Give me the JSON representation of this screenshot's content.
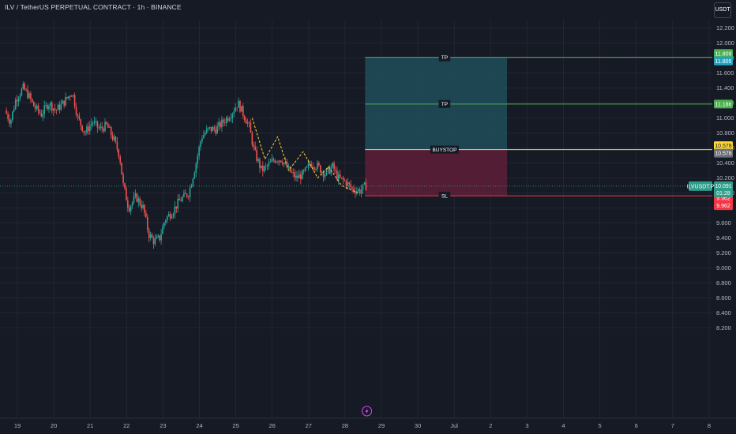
{
  "header": {
    "symbol_title": "ILV / TetherUS PERPETUAL CONTRACT · 1h · BINANCE",
    "currency": "USDT"
  },
  "colors": {
    "background": "#161a25",
    "up": "#26a69a",
    "down": "#ef5350",
    "profit_zone": "#1f4e5a",
    "loss_zone": "#5e1f3a",
    "tp_line": "#4caf50",
    "buystop_line": "#fdd835",
    "sl_line": "#f23645",
    "pattern_line": "#fdd835"
  },
  "chart_data": {
    "type": "candlestick",
    "ylim": [
      8.1,
      12.3
    ],
    "y_ticks": [
      "12.200",
      "12.000",
      "11.800",
      "11.600",
      "11.400",
      "11.200",
      "11.000",
      "10.800",
      "10.600",
      "10.400",
      "10.200",
      "10.000",
      "9.800",
      "9.600",
      "9.400",
      "9.200",
      "9.000",
      "8.800",
      "8.600",
      "8.400",
      "8.200"
    ],
    "x_ticks": [
      {
        "label": "19",
        "day": 19
      },
      {
        "label": "20",
        "day": 20
      },
      {
        "label": "21",
        "day": 21
      },
      {
        "label": "22",
        "day": 22
      },
      {
        "label": "23",
        "day": 23
      },
      {
        "label": "24",
        "day": 24
      },
      {
        "label": "25",
        "day": 25
      },
      {
        "label": "26",
        "day": 26
      },
      {
        "label": "27",
        "day": 27
      },
      {
        "label": "28",
        "day": 28
      },
      {
        "label": "29",
        "day": 29
      },
      {
        "label": "30",
        "day": 30
      },
      {
        "label": "Jul",
        "day": 31
      },
      {
        "label": "2",
        "day": 32
      },
      {
        "label": "3",
        "day": 33
      },
      {
        "label": "4",
        "day": 34
      },
      {
        "label": "5",
        "day": 35
      },
      {
        "label": "6",
        "day": 36
      },
      {
        "label": "7",
        "day": 37
      },
      {
        "label": "8",
        "day": 38
      }
    ],
    "day_range": [
      18.7,
      39.0
    ],
    "price_path": [
      [
        18.7,
        11.1
      ],
      [
        18.85,
        10.95
      ],
      [
        19.0,
        11.25
      ],
      [
        19.2,
        11.4
      ],
      [
        19.35,
        11.3
      ],
      [
        19.5,
        11.15
      ],
      [
        19.7,
        11.05
      ],
      [
        19.9,
        11.2
      ],
      [
        20.1,
        11.1
      ],
      [
        20.3,
        11.2
      ],
      [
        20.55,
        11.35
      ],
      [
        20.7,
        11.0
      ],
      [
        20.9,
        10.8
      ],
      [
        21.1,
        10.95
      ],
      [
        21.3,
        10.85
      ],
      [
        21.5,
        10.9
      ],
      [
        21.7,
        10.7
      ],
      [
        21.85,
        10.5
      ],
      [
        21.95,
        10.1
      ],
      [
        22.1,
        9.8
      ],
      [
        22.3,
        9.95
      ],
      [
        22.5,
        9.8
      ],
      [
        22.65,
        9.45
      ],
      [
        22.8,
        9.35
      ],
      [
        22.95,
        9.4
      ],
      [
        23.1,
        9.65
      ],
      [
        23.3,
        9.75
      ],
      [
        23.5,
        9.9
      ],
      [
        23.75,
        10.0
      ],
      [
        23.95,
        10.4
      ],
      [
        24.1,
        10.75
      ],
      [
        24.3,
        10.85
      ],
      [
        24.5,
        10.85
      ],
      [
        24.7,
        10.95
      ],
      [
        24.9,
        11.05
      ],
      [
        25.1,
        11.2
      ],
      [
        25.25,
        11.05
      ],
      [
        25.4,
        10.9
      ],
      [
        25.55,
        10.55
      ],
      [
        25.75,
        10.3
      ],
      [
        25.9,
        10.35
      ],
      [
        26.1,
        10.45
      ],
      [
        26.3,
        10.45
      ],
      [
        26.5,
        10.3
      ],
      [
        26.7,
        10.2
      ],
      [
        26.9,
        10.25
      ],
      [
        27.1,
        10.4
      ],
      [
        27.3,
        10.35
      ],
      [
        27.5,
        10.25
      ],
      [
        27.7,
        10.35
      ],
      [
        27.85,
        10.2
      ],
      [
        28.05,
        10.15
      ],
      [
        28.25,
        10.05
      ],
      [
        28.45,
        10.03
      ],
      [
        28.6,
        10.09
      ]
    ],
    "pattern_line_points": [
      [
        25.45,
        11.0
      ],
      [
        25.8,
        10.45
      ],
      [
        26.15,
        10.75
      ],
      [
        26.45,
        10.3
      ],
      [
        26.85,
        10.55
      ],
      [
        27.25,
        10.2
      ],
      [
        27.55,
        10.35
      ],
      [
        27.9,
        10.1
      ],
      [
        28.35,
        10.0
      ]
    ],
    "position": {
      "start_day": 28.55,
      "end_day": 32.45,
      "tp_outer": 11.809,
      "tp_inner": 11.186,
      "entry": 10.578,
      "sl": 9.962
    },
    "levels": [
      {
        "label": "TP",
        "price": 11.809
      },
      {
        "label": "TP",
        "price": 11.186
      },
      {
        "label": "BUYSTOP",
        "price": 10.578
      },
      {
        "label": "SL",
        "price": 9.962
      }
    ],
    "price_tags": [
      {
        "text": "11.809",
        "price": 11.86,
        "color": "#4caf50"
      },
      {
        "text": "11.805",
        "price": 11.76,
        "color": "#22a3c0"
      },
      {
        "text": "11.186",
        "price": 11.186,
        "color": "#4caf50"
      },
      {
        "text": "10.578",
        "price": 10.63,
        "color": "#fdd835"
      },
      {
        "text": "10.576",
        "price": 10.53,
        "color": "#6b6e78"
      },
      {
        "text": "9.962",
        "price": 9.93,
        "color": "#f23645"
      },
      {
        "text": "9.962",
        "price": 9.83,
        "color": "#f23645"
      }
    ],
    "last_price": {
      "symbol": "ILVUSDT.P",
      "value": "10.091",
      "countdown": "01:28",
      "price": 10.091
    },
    "session_marker": {
      "icon": "lightning-icon",
      "day": 28.6
    }
  }
}
